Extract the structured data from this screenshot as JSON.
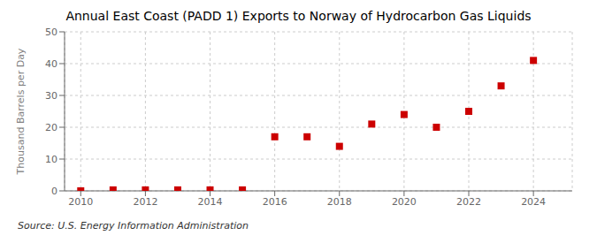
{
  "chart_data": {
    "type": "scatter",
    "title": "Annual East Coast (PADD 1) Exports to Norway of Hydrocarbon Gas Liquids",
    "ylabel": "Thousand Barrels per Day",
    "source": "Source: U.S. Energy Information Administration",
    "x": [
      2010,
      2011,
      2012,
      2013,
      2014,
      2015,
      2016,
      2017,
      2018,
      2019,
      2020,
      2021,
      2022,
      2023,
      2024
    ],
    "values": [
      0.0,
      0.3,
      0.3,
      0.3,
      0.3,
      0.3,
      17.0,
      17.0,
      14.0,
      21.0,
      24.0,
      20.0,
      25.0,
      33.0,
      41.0
    ],
    "color": "#cc0000",
    "marker": "square",
    "xlim": [
      2009.5,
      2025.2
    ],
    "xticks": [
      2010,
      2012,
      2014,
      2016,
      2018,
      2020,
      2022,
      2024
    ],
    "ylim": [
      0,
      50
    ],
    "yticks": [
      0,
      10,
      20,
      30,
      40,
      50
    ],
    "grid": true
  }
}
